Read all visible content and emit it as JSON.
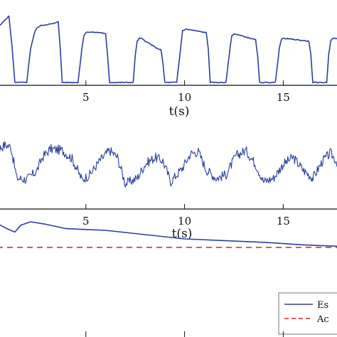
{
  "chart_data": [
    {
      "type": "line",
      "xlabel": "t(s)",
      "xlim": [
        0,
        18.3
      ],
      "ylim": [
        0,
        1
      ],
      "xticks": [
        5,
        10,
        15
      ],
      "xtick_labels": [
        "5",
        "10",
        "15"
      ],
      "grid": false,
      "series": [
        {
          "color": "#2a3f9e",
          "x": [
            0,
            0.3,
            0.9,
            1.1,
            1.25,
            1.4,
            2.0,
            2.2,
            2.4,
            2.5,
            2.6,
            2.7,
            3.4,
            3.6,
            3.7,
            3.8,
            3.9,
            4.6,
            4.8,
            4.9,
            5.0,
            5.1,
            5.8,
            6.0,
            6.1,
            6.2,
            6.3,
            7.4,
            7.5,
            7.6,
            7.7,
            7.8,
            8.6,
            8.8,
            8.9,
            9.0,
            9.1,
            9.6,
            9.8,
            9.9,
            10.0,
            10.1,
            11.1,
            11.2,
            11.3,
            11.4,
            11.5,
            12.1,
            12.3,
            12.4,
            12.5,
            12.6,
            13.6,
            13.7,
            13.8,
            13.9,
            14.0,
            14.6,
            14.8,
            14.9,
            15.0,
            15.1,
            16.3,
            16.4,
            16.5,
            16.6,
            16.7,
            17.2,
            17.3,
            17.4,
            17.5,
            17.6,
            18.3
          ],
          "y": [
            0.6,
            0.72,
            0.9,
            0.95,
            0.55,
            0.02,
            0.02,
            0.5,
            0.72,
            0.78,
            0.8,
            0.82,
            0.85,
            0.88,
            0.5,
            0.02,
            0.02,
            0.02,
            0.5,
            0.68,
            0.72,
            0.73,
            0.72,
            0.7,
            0.4,
            0.02,
            0.02,
            0.02,
            0.4,
            0.6,
            0.64,
            0.64,
            0.5,
            0.48,
            0.3,
            0.02,
            0.02,
            0.02,
            0.5,
            0.75,
            0.76,
            0.77,
            0.72,
            0.5,
            0.02,
            0.02,
            0.02,
            0.02,
            0.5,
            0.68,
            0.7,
            0.7,
            0.62,
            0.4,
            0.02,
            0.02,
            0.02,
            0.02,
            0.5,
            0.62,
            0.64,
            0.64,
            0.6,
            0.4,
            0.02,
            0.02,
            0.02,
            0.02,
            0.4,
            0.6,
            0.64,
            0.64,
            0.6
          ]
        }
      ]
    },
    {
      "type": "line",
      "xlabel": "t(s)",
      "xlim": [
        0,
        18.3
      ],
      "ylim": [
        0,
        1
      ],
      "xticks": [
        5,
        10,
        15
      ],
      "xtick_labels": [
        "5",
        "10",
        "15"
      ],
      "grid": false,
      "series": [
        {
          "color": "#2a3f9e",
          "x": [
            0,
            0.4,
            0.9,
            1.2,
            1.5,
            2.0,
            2.5,
            2.8,
            3.2,
            3.8,
            4.3,
            4.8,
            5.2,
            5.7,
            6.2,
            6.6,
            7.0,
            7.6,
            8.0,
            8.5,
            8.9,
            9.3,
            9.9,
            10.3,
            10.7,
            11.1,
            11.6,
            12.1,
            12.6,
            13.1,
            13.6,
            14.0,
            14.5,
            15.0,
            15.5,
            16.0,
            16.5,
            17.0,
            17.4,
            17.8,
            18.3
          ],
          "y": [
            0.55,
            0.68,
            0.78,
            0.75,
            0.3,
            0.28,
            0.4,
            0.6,
            0.72,
            0.7,
            0.58,
            0.28,
            0.35,
            0.55,
            0.7,
            0.6,
            0.22,
            0.3,
            0.5,
            0.6,
            0.55,
            0.25,
            0.45,
            0.65,
            0.68,
            0.42,
            0.3,
            0.35,
            0.62,
            0.7,
            0.5,
            0.25,
            0.3,
            0.5,
            0.6,
            0.42,
            0.3,
            0.55,
            0.66,
            0.5,
            0.35
          ]
        }
      ]
    },
    {
      "type": "line",
      "xlim": [
        0,
        18.3
      ],
      "ylim": [
        0,
        1
      ],
      "grid": false,
      "legend_position": "bottom-right",
      "series": [
        {
          "name": "Es",
          "color": "#2a3f9e",
          "style": "solid",
          "x": [
            0,
            0.5,
            1.0,
            1.4,
            1.7,
            2.2,
            3.0,
            4.0,
            5.0,
            6.0,
            8.0,
            10.0,
            12.0,
            14.0,
            16.0,
            17.0,
            18.3
          ],
          "y": [
            0.82,
            0.88,
            0.82,
            0.78,
            0.86,
            0.9,
            0.87,
            0.82,
            0.81,
            0.8,
            0.75,
            0.7,
            0.68,
            0.66,
            0.63,
            0.62,
            0.61
          ]
        },
        {
          "name": "Ac",
          "color": "#c4282b",
          "style": "dashed",
          "x": [
            0,
            18.3
          ],
          "y": [
            0.6,
            0.6
          ]
        }
      ]
    }
  ]
}
